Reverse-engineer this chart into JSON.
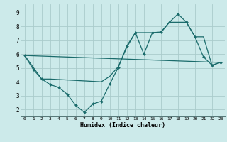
{
  "xlabel": "Humidex (Indice chaleur)",
  "background_color": "#cceaea",
  "grid_color": "#aacccc",
  "line_color": "#1a6b6b",
  "xlim": [
    -0.5,
    23.5
  ],
  "ylim": [
    1.5,
    9.6
  ],
  "xticks": [
    0,
    1,
    2,
    3,
    4,
    5,
    6,
    7,
    8,
    9,
    10,
    11,
    12,
    13,
    14,
    15,
    16,
    17,
    18,
    19,
    20,
    21,
    22,
    23
  ],
  "yticks": [
    2,
    3,
    4,
    5,
    6,
    7,
    8,
    9
  ],
  "line1_x": [
    0,
    1,
    2,
    3,
    4,
    5,
    6,
    7,
    8,
    9,
    10,
    11,
    12,
    13,
    14,
    15,
    16,
    17,
    18,
    19,
    20,
    21,
    22,
    23
  ],
  "line1_y": [
    5.9,
    4.9,
    4.2,
    3.8,
    3.6,
    3.1,
    2.3,
    1.8,
    2.4,
    2.6,
    3.85,
    5.05,
    6.6,
    7.55,
    6.0,
    7.55,
    7.6,
    8.3,
    8.9,
    8.3,
    7.25,
    5.8,
    5.2,
    5.4
  ],
  "line2_x": [
    0,
    2,
    3,
    9,
    10,
    11,
    12,
    13,
    14,
    15,
    16,
    17,
    18,
    19,
    20,
    21,
    22,
    23
  ],
  "line2_y": [
    5.9,
    4.2,
    4.2,
    4.0,
    4.4,
    5.1,
    6.5,
    7.55,
    7.55,
    7.55,
    7.55,
    8.3,
    8.3,
    8.3,
    7.25,
    7.25,
    5.2,
    5.4
  ],
  "line3_x": [
    0,
    23
  ],
  "line3_y": [
    5.9,
    5.4
  ]
}
